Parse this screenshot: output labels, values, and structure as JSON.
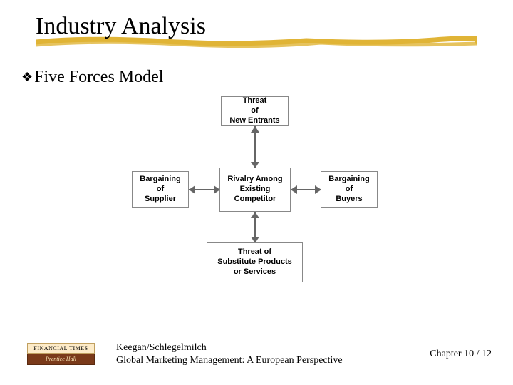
{
  "title": "Industry Analysis",
  "bullet": "Five Forces Model",
  "underline": {
    "stroke_color": "#e0b436",
    "stroke_width": 7
  },
  "forces": {
    "top": "Threat\nof\nNew Entrants",
    "left": "Bargaining\nof\nSupplier",
    "center": "Rivalry Among\nExisting\nCompetitor",
    "right": "Bargaining\nof\nBuyers",
    "bottom": "Threat of\nSubstitute Products\nor Services"
  },
  "logo": {
    "line1": "FINANCIAL TIMES",
    "line2": "Prentice Hall"
  },
  "footer": {
    "authors": "Keegan/Schlegelmilch",
    "book": "Global Marketing Management: A European Perspective",
    "page": "Chapter 10 / 12"
  }
}
